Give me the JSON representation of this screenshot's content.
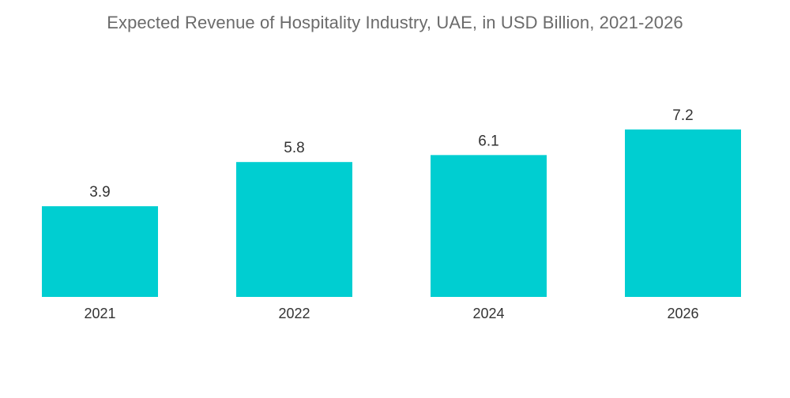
{
  "chart_data": {
    "type": "bar",
    "title": "Expected Revenue of Hospitality Industry, UAE, in USD Billion, 2021-2026",
    "categories": [
      "2021",
      "2022",
      "2024",
      "2026"
    ],
    "values": [
      3.9,
      5.8,
      6.1,
      7.2
    ],
    "value_labels": [
      "3.9",
      "5.8",
      "6.1",
      "7.2"
    ],
    "xlabel": "",
    "ylabel": "",
    "ylim": [
      0,
      8
    ],
    "grid": false,
    "bar_color": "#00ced1"
  }
}
